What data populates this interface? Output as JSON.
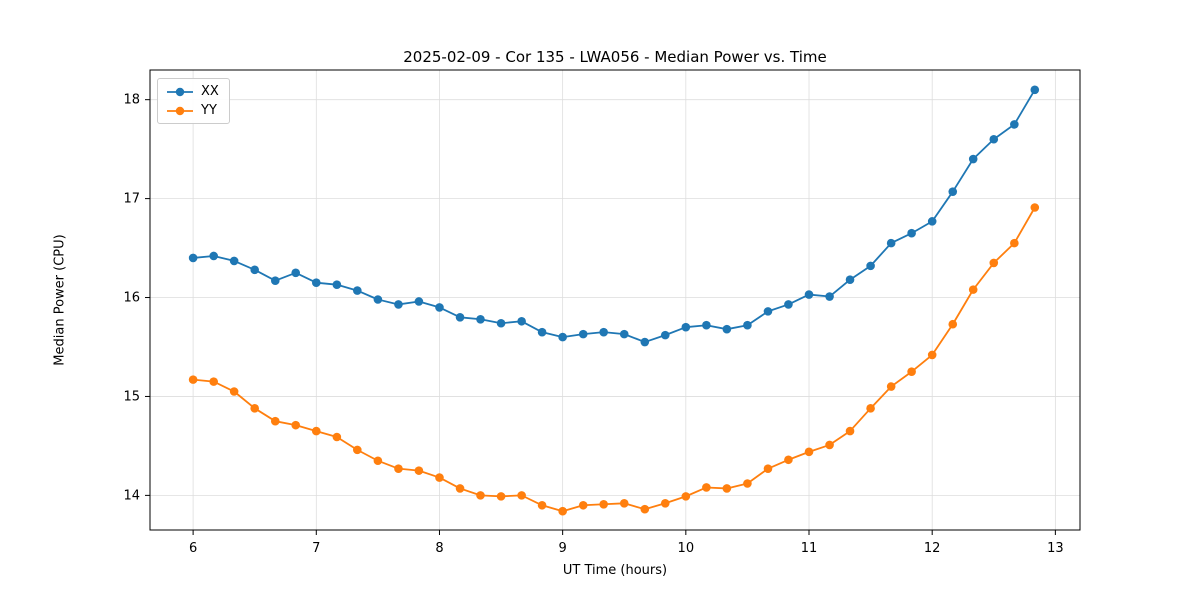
{
  "title": "2025-02-09 - Cor 135 - LWA056 - Median Power vs. Time",
  "chart_data": {
    "type": "line",
    "title": "2025-02-09 - Cor 135 - LWA056 - Median Power vs. Time",
    "xlabel": "UT Time (hours)",
    "ylabel": "Median Power (CPU)",
    "xlim": [
      5.65,
      13.2
    ],
    "ylim": [
      13.65,
      18.3
    ],
    "xticks": [
      6,
      7,
      8,
      9,
      10,
      11,
      12,
      13
    ],
    "yticks": [
      14,
      15,
      16,
      17,
      18
    ],
    "grid": true,
    "legend_position": "upper left",
    "x": [
      6.0,
      6.167,
      6.333,
      6.5,
      6.667,
      6.833,
      7.0,
      7.167,
      7.333,
      7.5,
      7.667,
      7.833,
      8.0,
      8.167,
      8.333,
      8.5,
      8.667,
      8.833,
      9.0,
      9.167,
      9.333,
      9.5,
      9.667,
      9.833,
      10.0,
      10.167,
      10.333,
      10.5,
      10.667,
      10.833,
      11.0,
      11.167,
      11.333,
      11.5,
      11.667,
      11.833,
      12.0,
      12.167,
      12.333,
      12.5,
      12.667,
      12.833
    ],
    "series": [
      {
        "name": "XX",
        "color": "#1f77b4",
        "values": [
          16.4,
          16.42,
          16.37,
          16.28,
          16.17,
          16.25,
          16.15,
          16.13,
          16.07,
          15.98,
          15.93,
          15.96,
          15.9,
          15.8,
          15.78,
          15.74,
          15.76,
          15.65,
          15.6,
          15.63,
          15.65,
          15.63,
          15.55,
          15.62,
          15.7,
          15.72,
          15.68,
          15.72,
          15.86,
          15.93,
          16.03,
          16.01,
          16.18,
          16.32,
          16.55,
          16.65,
          16.77,
          17.07,
          17.4,
          17.6,
          17.75,
          18.1
        ]
      },
      {
        "name": "YY",
        "color": "#ff7f0e",
        "values": [
          15.17,
          15.15,
          15.05,
          14.88,
          14.75,
          14.71,
          14.65,
          14.59,
          14.46,
          14.35,
          14.27,
          14.25,
          14.18,
          14.07,
          14.0,
          13.99,
          14.0,
          13.9,
          13.84,
          13.9,
          13.91,
          13.92,
          13.86,
          13.92,
          13.99,
          14.08,
          14.07,
          14.12,
          14.27,
          14.36,
          14.44,
          14.51,
          14.65,
          14.88,
          15.1,
          15.25,
          15.42,
          15.73,
          16.08,
          16.35,
          16.55,
          16.91
        ]
      }
    ],
    "grid_color": "#dddddd",
    "frame_color": "#000000"
  }
}
